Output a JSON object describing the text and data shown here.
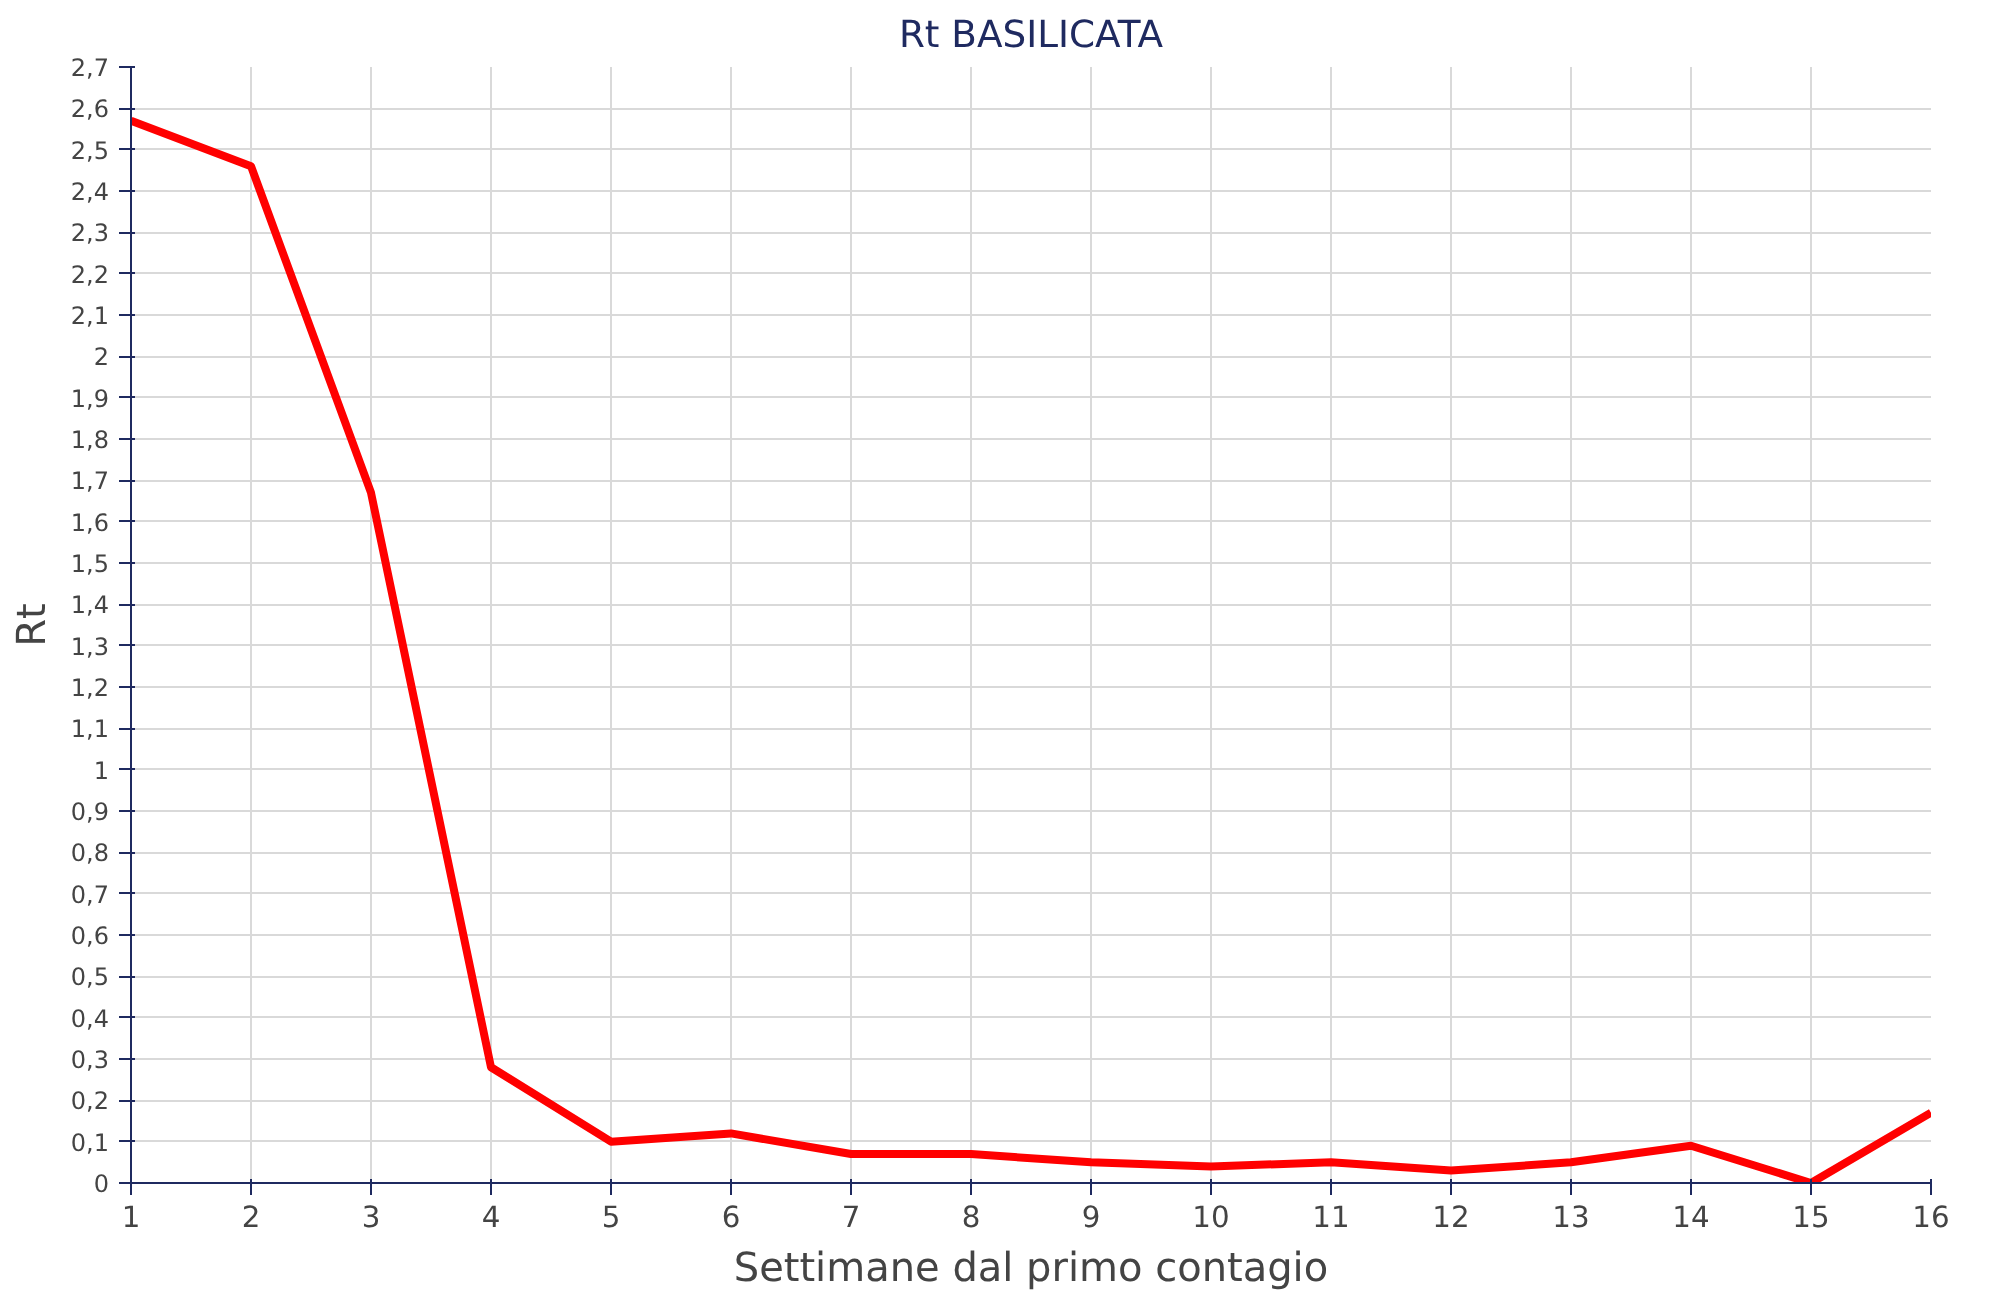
{
  "chart_data": {
    "type": "line",
    "title": "Rt BASILICATA",
    "xlabel": "Settimane dal primo contagio",
    "ylabel": "Rt",
    "x": [
      1,
      2,
      3,
      4,
      5,
      6,
      7,
      8,
      9,
      10,
      11,
      12,
      13,
      14,
      15,
      16
    ],
    "series": [
      {
        "color": "#ff0000",
        "values": [
          2.57,
          2.46,
          1.67,
          0.28,
          0.1,
          0.12,
          0.07,
          0.07,
          0.05,
          0.04,
          0.05,
          0.03,
          0.05,
          0.09,
          0.0,
          0.17
        ]
      }
    ],
    "xlim": [
      1,
      16
    ],
    "xticks": [
      1,
      2,
      3,
      4,
      5,
      6,
      7,
      8,
      9,
      10,
      11,
      12,
      13,
      14,
      15,
      16
    ],
    "ylim": [
      0,
      2.7
    ],
    "yticks": [
      0,
      {
        "value": 0.1,
        "label": "0,1"
      },
      {
        "value": 0.2,
        "label": "0,2"
      },
      {
        "value": 0.3,
        "label": "0,3"
      },
      {
        "value": 0.4,
        "label": "0,4"
      },
      {
        "value": 0.5,
        "label": "0,5"
      },
      {
        "value": 0.6,
        "label": "0,6"
      },
      {
        "value": 0.7,
        "label": "0,7"
      },
      {
        "value": 0.8,
        "label": "0,8"
      },
      {
        "value": 0.9,
        "label": "0,9"
      },
      1,
      {
        "value": 1.1,
        "label": "1,1"
      },
      {
        "value": 1.2,
        "label": "1,2"
      },
      {
        "value": 1.3,
        "label": "1,3"
      },
      {
        "value": 1.4,
        "label": "1,4"
      },
      {
        "value": 1.5,
        "label": "1,5"
      },
      {
        "value": 1.6,
        "label": "1,6"
      },
      {
        "value": 1.7,
        "label": "1,7"
      },
      {
        "value": 1.8,
        "label": "1,8"
      },
      {
        "value": 1.9,
        "label": "1,9"
      },
      2,
      {
        "value": 2.1,
        "label": "2,1"
      },
      {
        "value": 2.2,
        "label": "2,2"
      },
      {
        "value": 2.3,
        "label": "2,3"
      },
      {
        "value": 2.4,
        "label": "2,4"
      },
      {
        "value": 2.5,
        "label": "2,5"
      },
      {
        "value": 2.6,
        "label": "2,6"
      },
      {
        "value": 2.7,
        "label": "2,7"
      }
    ],
    "grid": true,
    "line_style": "solid"
  }
}
